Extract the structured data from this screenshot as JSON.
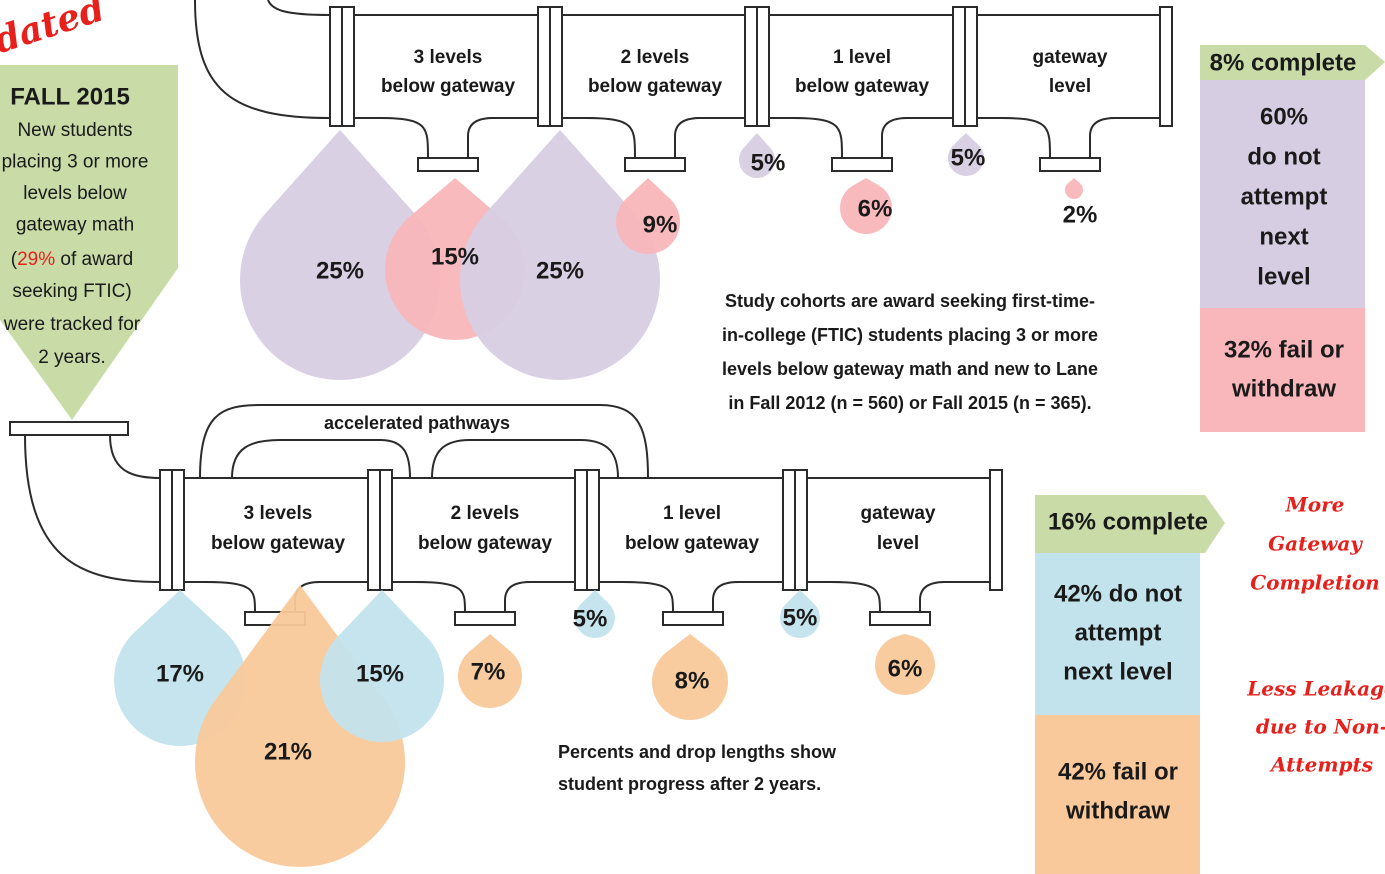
{
  "stamp": "Updated",
  "fall_box": {
    "title": "FALL 2015",
    "lines": [
      "New students",
      "placing 3 or more",
      "levels below",
      "gateway math"
    ],
    "line5": {
      "pre": "(",
      "highlight": "29%",
      "post": " of award"
    },
    "lines_after": [
      "seeking FTIC)",
      "were tracked for",
      "2 years."
    ]
  },
  "top": {
    "stages": [
      [
        "3 levels",
        "below gateway"
      ],
      [
        "2 levels",
        "below gateway"
      ],
      [
        "1 level",
        "below gateway"
      ],
      [
        "gateway",
        "level"
      ]
    ],
    "drops": [
      "25%",
      "15%",
      "25%",
      "9%",
      "5%",
      "6%",
      "5%",
      "2%"
    ],
    "summary": {
      "complete": "8% complete",
      "not_attempt": [
        "60%",
        "do not",
        "attempt",
        "next",
        "level"
      ],
      "fail": [
        "32% fail or",
        "withdraw"
      ]
    },
    "note": [
      "Study cohorts are award seeking first-time-",
      "in-college (FTIC) students placing 3 or more",
      "levels below gateway math and new to Lane",
      "in Fall 2012 (n = 560) or Fall 2015 (n = 365)."
    ]
  },
  "bottom": {
    "pathway_label": "accelerated pathways",
    "stages": [
      [
        "3 levels",
        "below gateway"
      ],
      [
        "2 levels",
        "below gateway"
      ],
      [
        "1 level",
        "below gateway"
      ],
      [
        "gateway",
        "level"
      ]
    ],
    "drops": [
      "17%",
      "21%",
      "15%",
      "7%",
      "5%",
      "8%",
      "5%",
      "6%"
    ],
    "summary": {
      "complete": "16% complete",
      "not_attempt": [
        "42% do not",
        "attempt",
        "next level"
      ],
      "fail": [
        "42% fail or",
        "withdraw"
      ]
    },
    "note": [
      "Percents and drop lengths show",
      "student progress after 2 years."
    ]
  },
  "callouts": [
    [
      "More",
      "Gateway",
      "Completion"
    ],
    [
      "Less Leakage",
      "due to Non-",
      "Attempts"
    ]
  ]
}
